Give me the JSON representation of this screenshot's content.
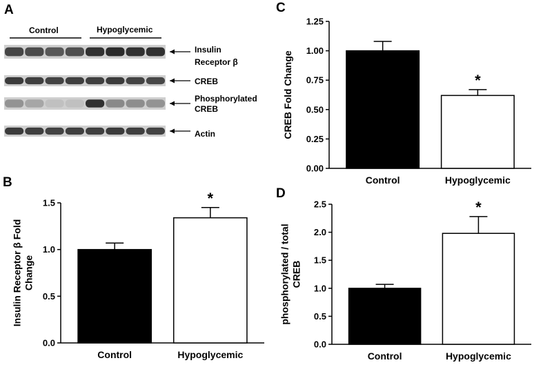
{
  "blot": {
    "panel": "A",
    "groups": [
      "Control",
      "Hypoglycemic"
    ],
    "lanes_per_group": 4,
    "bands": [
      {
        "label_lines": [
          "Insulin",
          "Receptor β"
        ],
        "control": [
          0.75,
          0.72,
          0.65,
          0.7
        ],
        "hypo": [
          0.85,
          0.88,
          0.85,
          0.85
        ]
      },
      {
        "label_lines": [
          "CREB"
        ],
        "control": [
          0.8,
          0.78,
          0.76,
          0.78
        ],
        "hypo": [
          0.78,
          0.8,
          0.76,
          0.74
        ]
      },
      {
        "label_lines": [
          "Phosphorylated",
          "CREB"
        ],
        "control": [
          0.35,
          0.25,
          0.12,
          0.12
        ],
        "hypo": [
          0.85,
          0.4,
          0.38,
          0.35
        ]
      },
      {
        "label_lines": [
          "Actin"
        ],
        "control": [
          0.8,
          0.78,
          0.76,
          0.78
        ],
        "hypo": [
          0.78,
          0.8,
          0.78,
          0.76
        ]
      }
    ]
  },
  "chart_data": [
    {
      "panel": "B",
      "type": "bar",
      "categories": [
        "Control",
        "Hypoglycemic"
      ],
      "values": [
        1.0,
        1.34
      ],
      "errors": [
        0.07,
        0.11
      ],
      "significance": [
        "",
        "*"
      ],
      "ylabel_lines": [
        "Insulin Receptor β Fold",
        "Change"
      ],
      "ylim": [
        0,
        1.5
      ],
      "yticks": [
        0.0,
        0.5,
        1.0,
        1.5
      ],
      "ytick_labels": [
        "0.0",
        "0.5",
        "1.0",
        "1.5"
      ],
      "fills": [
        "#000000",
        "#ffffff"
      ]
    },
    {
      "panel": "C",
      "type": "bar",
      "categories": [
        "Control",
        "Hypoglycemic"
      ],
      "values": [
        1.0,
        0.62
      ],
      "errors": [
        0.08,
        0.05
      ],
      "significance": [
        "",
        "*"
      ],
      "ylabel_lines": [
        "CREB Fold Change"
      ],
      "ylim": [
        0,
        1.25
      ],
      "yticks": [
        0,
        0.25,
        0.5,
        0.75,
        1.0,
        1.25
      ],
      "ytick_labels": [
        "0.00",
        "0.25",
        "0.50",
        "0.75",
        "1.00",
        "1.25"
      ],
      "fills": [
        "#000000",
        "#ffffff"
      ]
    },
    {
      "panel": "D",
      "type": "bar",
      "categories": [
        "Control",
        "Hypoglycemic"
      ],
      "values": [
        1.0,
        1.98
      ],
      "errors": [
        0.07,
        0.3
      ],
      "significance": [
        "",
        "*"
      ],
      "ylabel_lines": [
        "phosphorylated / total",
        "CREB"
      ],
      "ylim": [
        0,
        2.5
      ],
      "yticks": [
        0,
        0.5,
        1.0,
        1.5,
        2.0,
        2.5
      ],
      "ytick_labels": [
        "0.0",
        "0.5",
        "1.0",
        "1.5",
        "2.0",
        "2.5"
      ],
      "fills": [
        "#000000",
        "#ffffff"
      ]
    }
  ]
}
